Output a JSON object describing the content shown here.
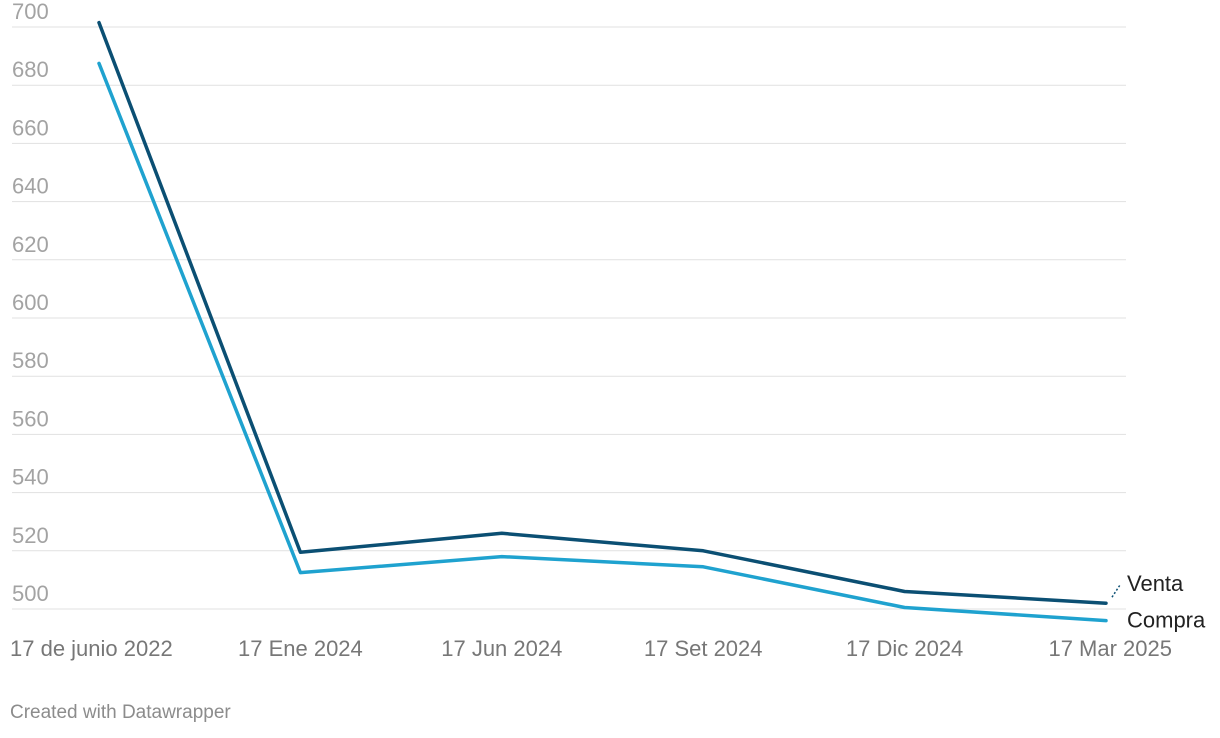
{
  "chart_data": {
    "type": "line",
    "categories": [
      "17 de junio 2022",
      "17 Ene 2024",
      "17 Jun 2024",
      "17 Set 2024",
      "17 Dic 2024",
      "17 Mar 2025"
    ],
    "series": [
      {
        "name": "Venta",
        "color": "#0b4f73",
        "values": [
          701.5,
          519.5,
          526,
          520,
          506,
          502
        ]
      },
      {
        "name": "Compra",
        "color": "#1fa2cf",
        "values": [
          687.5,
          512.5,
          518,
          514.5,
          500.5,
          496
        ]
      }
    ],
    "yticks": [
      "500",
      "520",
      "540",
      "560",
      "580",
      "600",
      "620",
      "640",
      "660",
      "680",
      "700"
    ],
    "ylim": [
      500,
      700
    ],
    "grid": true,
    "title": "",
    "xlabel": "",
    "ylabel": ""
  },
  "footer": {
    "credit": "Created with Datawrapper"
  }
}
